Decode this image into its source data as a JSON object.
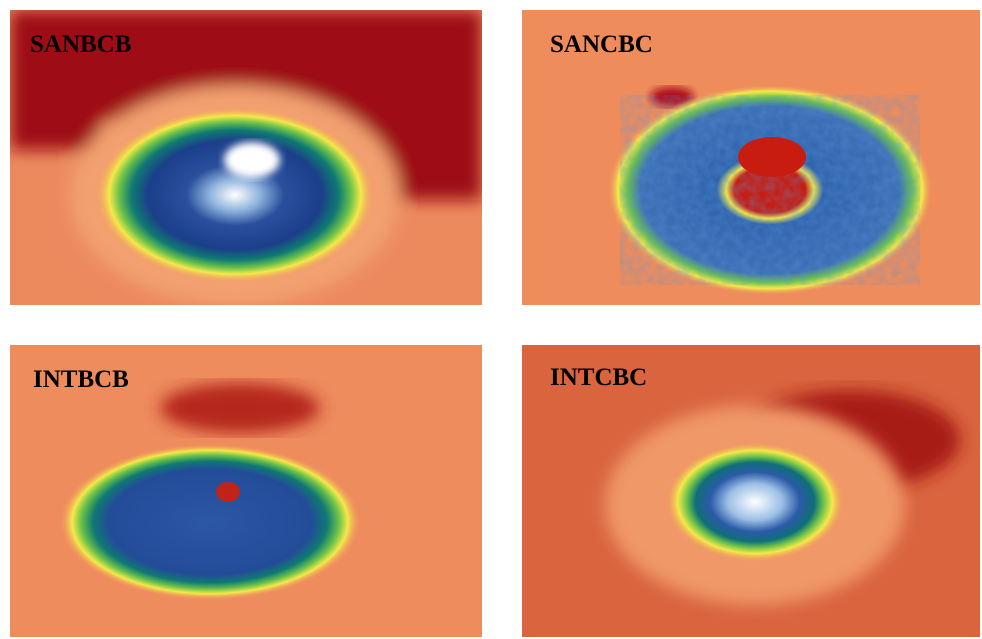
{
  "panels": [
    {
      "label": "SANBCB"
    },
    {
      "label": "SANCBC"
    },
    {
      "label": "INTBCB"
    },
    {
      "label": "INTCBC"
    }
  ]
}
